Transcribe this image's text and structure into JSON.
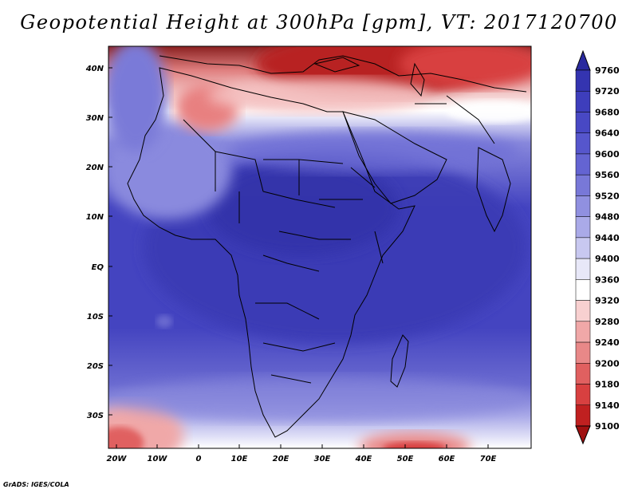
{
  "title": "Geopotential Height at 300hPa [gpm], VT: 2017120700",
  "credit": "GrADS: IGES/COLA",
  "map": {
    "lat_labels": [
      "40N",
      "30N",
      "20N",
      "10N",
      "EQ",
      "10S",
      "20S",
      "30S"
    ],
    "lon_labels": [
      "20W",
      "10W",
      "0",
      "10E",
      "20E",
      "30E",
      "40E",
      "50E",
      "60E",
      "70E"
    ],
    "lat_range": [
      -36,
      44
    ],
    "lon_range": [
      -22,
      80
    ]
  },
  "colorbar": {
    "levels": [
      "9760",
      "9720",
      "9680",
      "9640",
      "9600",
      "9560",
      "9520",
      "9480",
      "9440",
      "9400",
      "9360",
      "9320",
      "9280",
      "9240",
      "9200",
      "9180",
      "9140",
      "9100"
    ],
    "colors": [
      "#2a2a9e",
      "#3434b0",
      "#3e3ebc",
      "#4848c4",
      "#5656cc",
      "#6464d2",
      "#7878d8",
      "#9090e0",
      "#aaaae8",
      "#c8c8f0",
      "#e8e8f8",
      "#ffffff",
      "#f8d0d0",
      "#f0a8a8",
      "#e88888",
      "#e06060",
      "#d84040",
      "#c02020",
      "#a01010"
    ]
  }
}
